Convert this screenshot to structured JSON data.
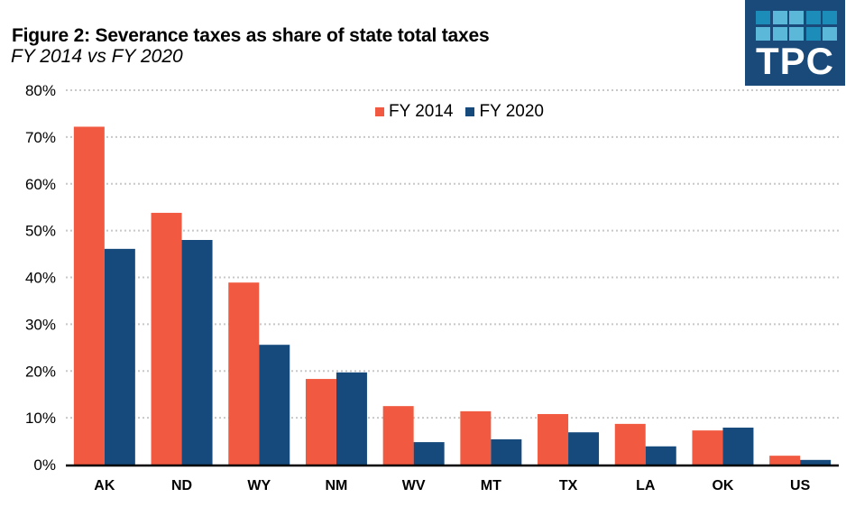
{
  "header": {
    "title": "Figure 2: Severance taxes as share of state total taxes",
    "subtitle": "FY 2014 vs FY 2020"
  },
  "logo": {
    "text": "TPC",
    "background": "#1a4a7a",
    "squares": [
      [
        "#1b8db8",
        "#5bb8d8",
        "#5bb8d8",
        "#1b8db8",
        "#1b8db8"
      ],
      [
        "#5bb8d8",
        "#5bb8d8",
        "#5bb8d8",
        "#1b8db8",
        "#5bb8d8"
      ]
    ]
  },
  "chart_data": {
    "type": "bar",
    "title": "Figure 2: Severance taxes as share of state total taxes",
    "subtitle": "FY 2014 vs FY 2020",
    "xlabel": "",
    "ylabel": "",
    "categories": [
      "AK",
      "ND",
      "WY",
      "NM",
      "WV",
      "MT",
      "TX",
      "LA",
      "OK",
      "US"
    ],
    "series": [
      {
        "name": "FY 2014",
        "color": "#f15a40",
        "values": [
          72.2,
          53.8,
          38.9,
          18.3,
          12.5,
          11.4,
          10.8,
          8.7,
          7.3,
          1.9
        ]
      },
      {
        "name": "FY 2020",
        "color": "#174a7c",
        "values": [
          46.1,
          48.0,
          25.6,
          19.7,
          4.8,
          5.4,
          6.9,
          3.9,
          7.9,
          1.0
        ]
      }
    ],
    "ylim": [
      0,
      80
    ],
    "yticks": [
      0,
      10,
      20,
      30,
      40,
      50,
      60,
      70,
      80
    ],
    "ytick_labels": [
      "0%",
      "10%",
      "20%",
      "30%",
      "40%",
      "50%",
      "60%",
      "70%",
      "80%"
    ],
    "grid": "horizontal-dotted",
    "legend_position": "top-center"
  }
}
